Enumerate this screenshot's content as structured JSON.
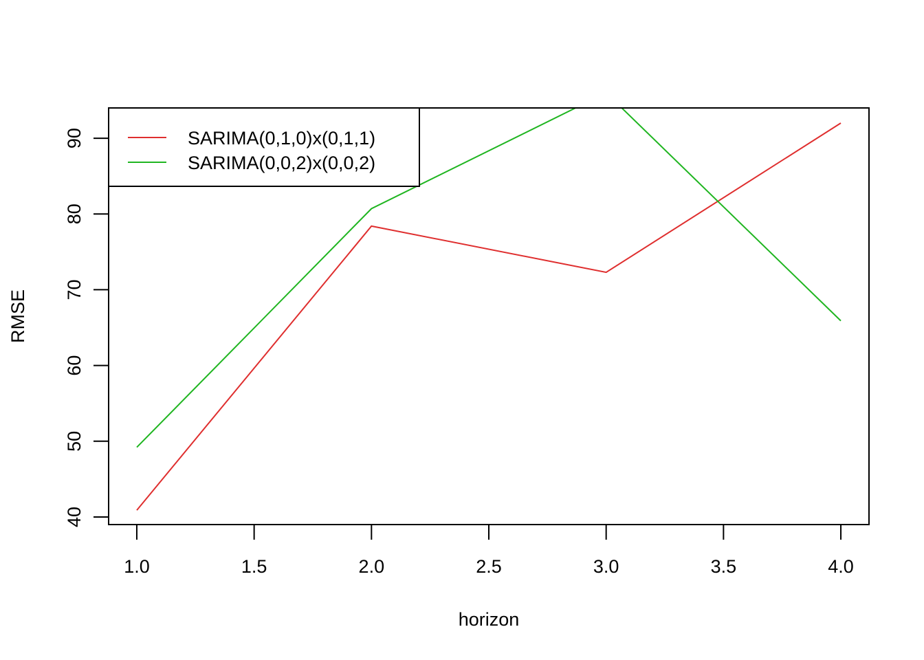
{
  "chart_data": {
    "type": "line",
    "xlabel": "horizon",
    "ylabel": "RMSE",
    "x": [
      1,
      2,
      3,
      4
    ],
    "xlim": [
      0.88,
      4.12
    ],
    "ylim": [
      39,
      94
    ],
    "x_ticks": [
      1.0,
      1.5,
      2.0,
      2.5,
      3.0,
      3.5,
      4.0
    ],
    "x_tick_labels": [
      "1.0",
      "1.5",
      "2.0",
      "2.5",
      "3.0",
      "3.5",
      "4.0"
    ],
    "y_ticks": [
      40,
      50,
      60,
      70,
      80,
      90
    ],
    "y_tick_labels": [
      "40",
      "50",
      "60",
      "70",
      "80",
      "90"
    ],
    "grid": false,
    "legend_position": "top-left",
    "series": [
      {
        "name": "SARIMA(0,1,0)x(0,1,1)",
        "color": "#DF2E2E",
        "values": [
          40.9,
          78.4,
          72.3,
          92.0
        ]
      },
      {
        "name": "SARIMA(0,0,2)x(0,0,2)",
        "color": "#1FB520",
        "values": [
          49.2,
          80.7,
          96.0,
          65.9
        ]
      }
    ]
  }
}
